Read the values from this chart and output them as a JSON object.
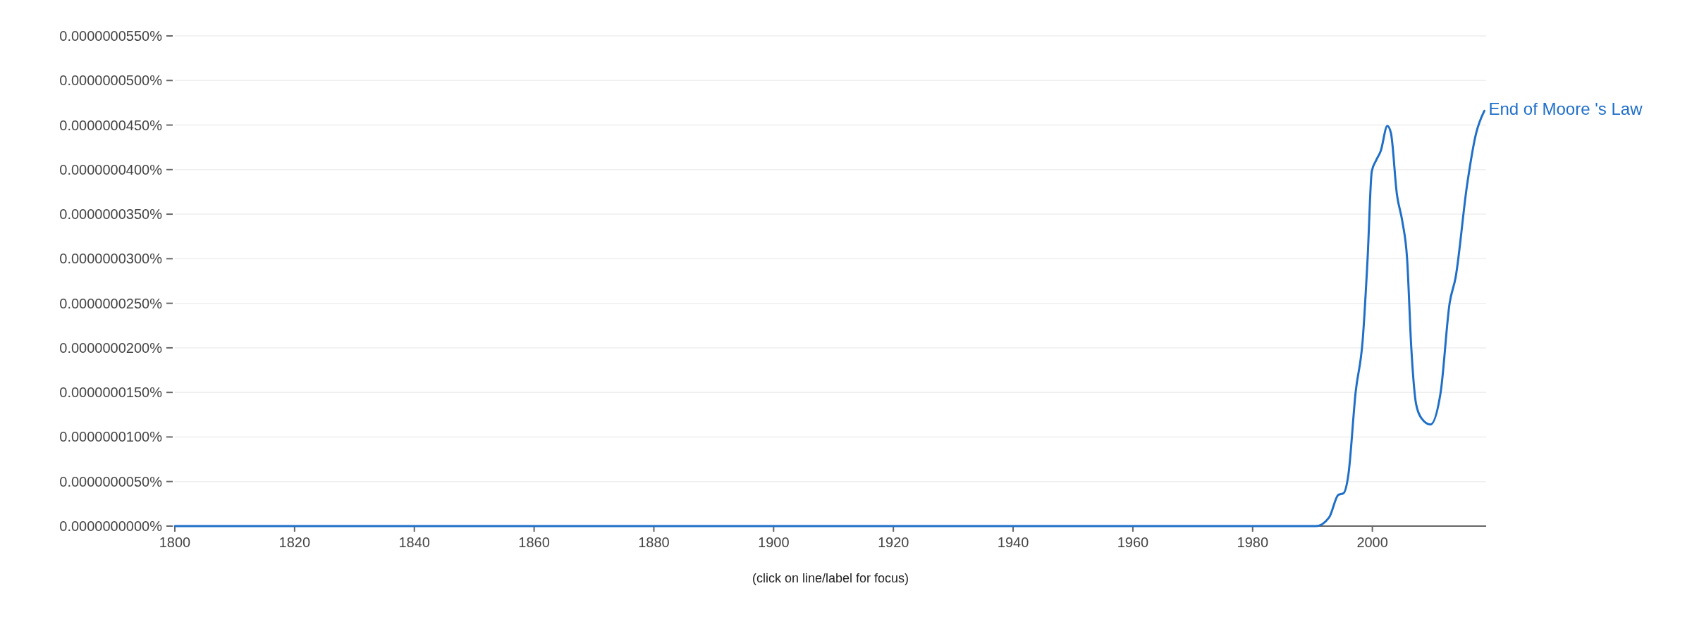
{
  "chart_data": {
    "type": "line",
    "xlim": [
      1800,
      2019
    ],
    "xticks": [
      1800,
      1820,
      1840,
      1860,
      1880,
      1900,
      1920,
      1940,
      1960,
      1980,
      2000
    ],
    "ylim": [
      0,
      5.5e-08
    ],
    "yticks": [
      {
        "value": 0,
        "label": "0.0000000000%"
      },
      {
        "value": 5e-09,
        "label": "0.0000000050%"
      },
      {
        "value": 1e-08,
        "label": "0.0000000100%"
      },
      {
        "value": 1.5e-08,
        "label": "0.0000000150%"
      },
      {
        "value": 2e-08,
        "label": "0.0000000200%"
      },
      {
        "value": 2.5e-08,
        "label": "0.0000000250%"
      },
      {
        "value": 3e-08,
        "label": "0.0000000300%"
      },
      {
        "value": 3.5e-08,
        "label": "0.0000000350%"
      },
      {
        "value": 4e-08,
        "label": "0.0000000400%"
      },
      {
        "value": 4.5e-08,
        "label": "0.0000000450%"
      },
      {
        "value": 5e-08,
        "label": "0.0000000500%"
      },
      {
        "value": 5.5e-08,
        "label": "0.0000000550%"
      }
    ],
    "grid": "y",
    "annotations": [
      "(click on line/label for focus)"
    ],
    "series": [
      {
        "name": "End of Moore 's Law",
        "color": "#1f6fc8",
        "x": [
          1800,
          1990.6,
          1992.8,
          1994.3,
          1995.2,
          1996,
          1997.2,
          1998.4,
          1999.2,
          1999.9,
          2000.6,
          2001.4,
          2002.5,
          2003.1,
          2004.1,
          2005,
          2005.8,
          2006.5,
          2007.3,
          2008.2,
          2009.7,
          2011.4,
          2012.9,
          2013.9,
          2015.8,
          2017.3,
          2018.7
        ],
        "values": [
          0,
          0,
          1e-09,
          3.5e-09,
          3.7e-09,
          5.8e-09,
          1.5e-08,
          2.1e-08,
          3e-08,
          3.98e-08,
          4.1e-08,
          4.21e-08,
          4.49e-08,
          4.41e-08,
          3.72e-08,
          3.42e-08,
          3e-08,
          2e-08,
          1.37e-08,
          1.21e-08,
          1.14e-08,
          1.5e-08,
          2.5e-08,
          2.79e-08,
          3.82e-08,
          4.4e-08,
          4.66e-08
        ]
      }
    ]
  }
}
